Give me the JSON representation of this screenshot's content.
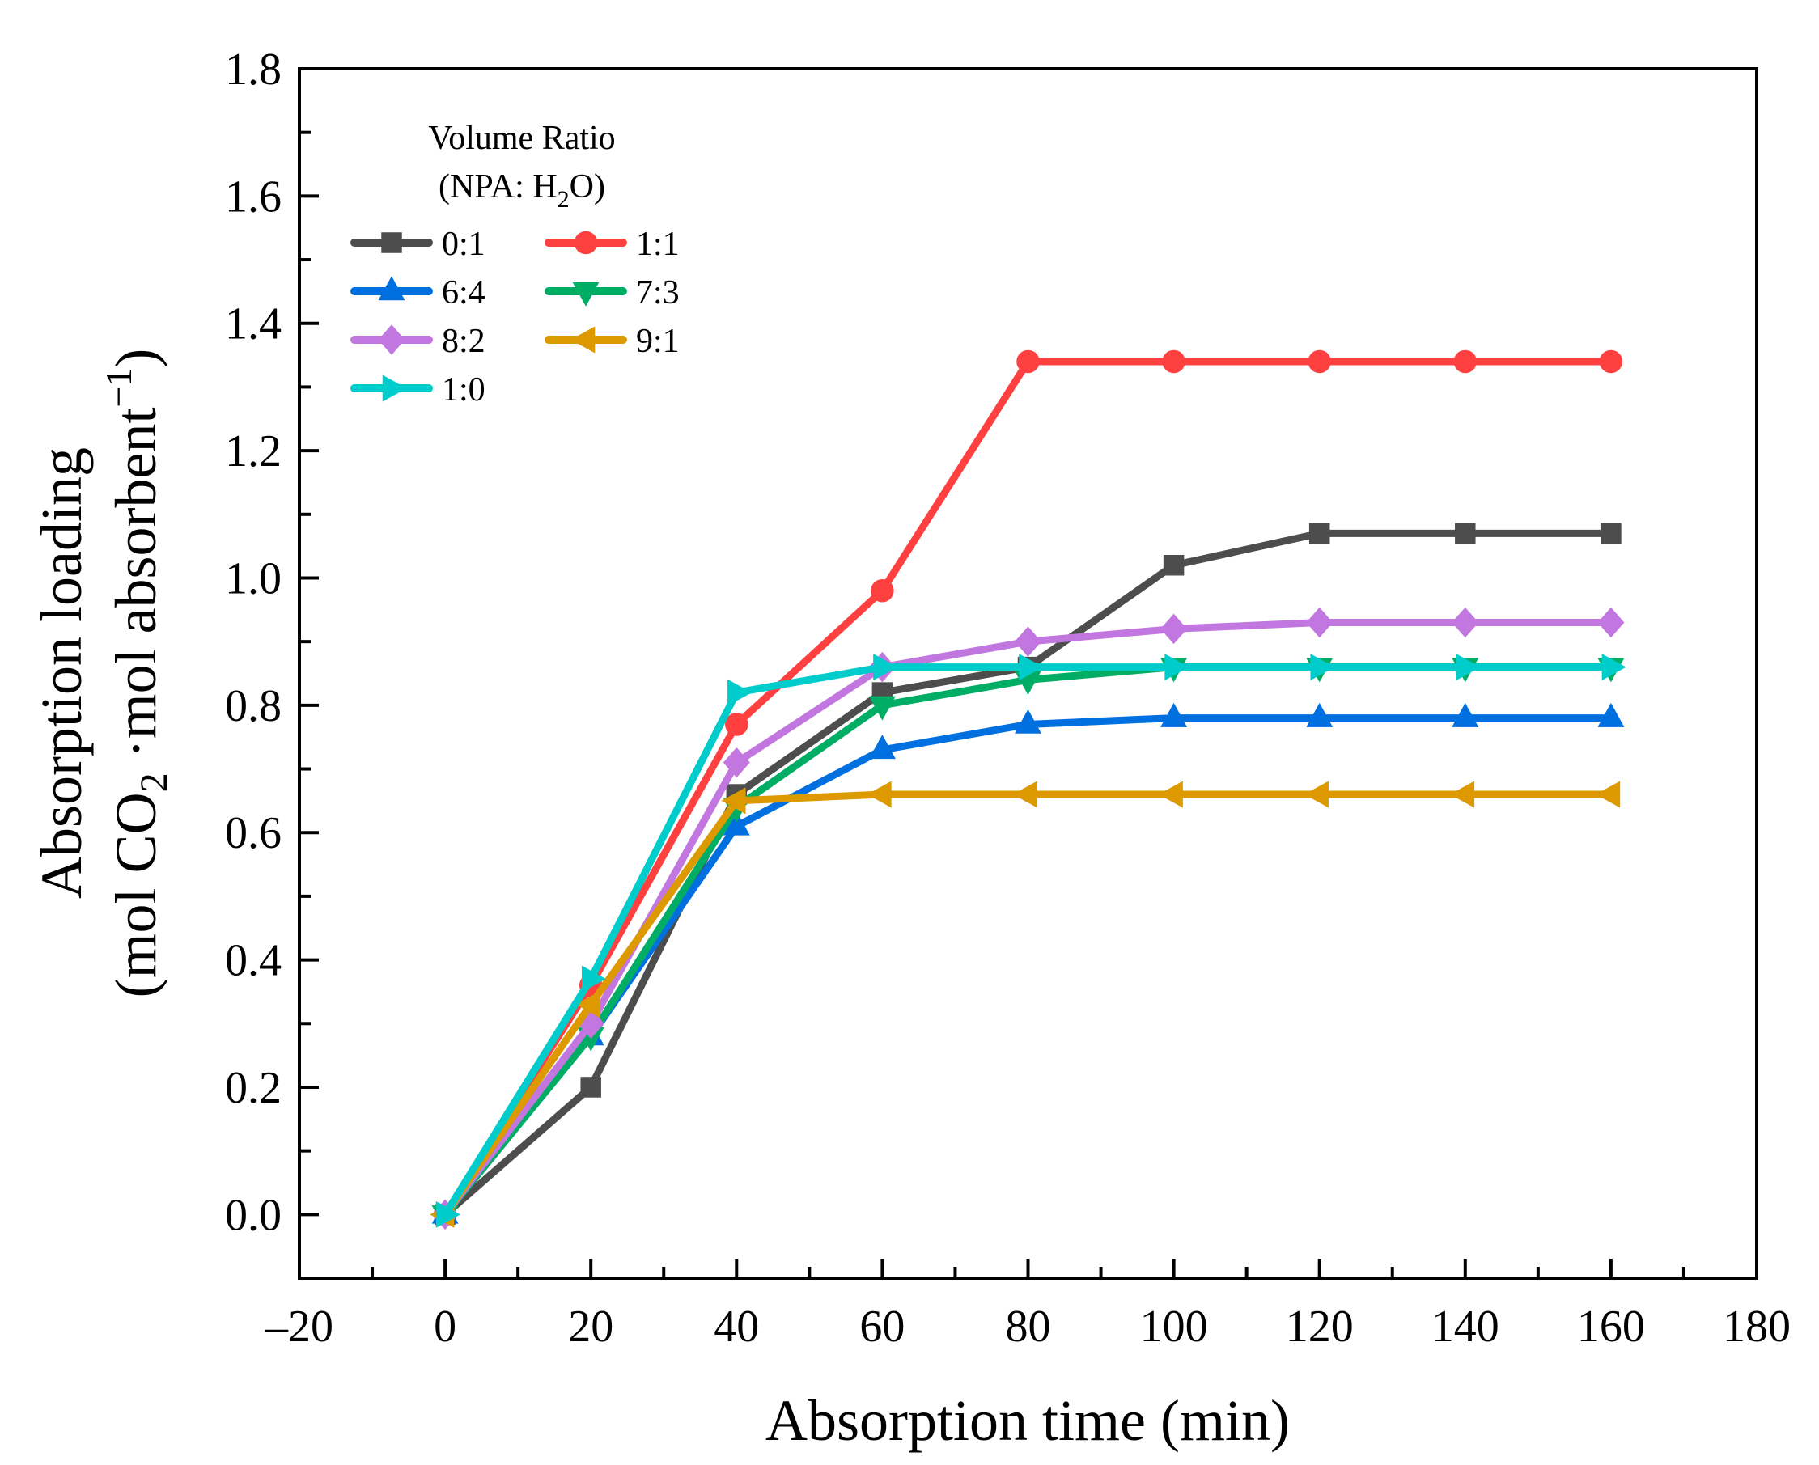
{
  "chart_data": {
    "type": "line",
    "title": "",
    "xlabel": "Absorption time (min)",
    "ylabel": {
      "line1": "Absorption loading",
      "line2_parts": [
        "(mol CO",
        "2",
        " ·mol absorbent",
        "−1",
        ")"
      ]
    },
    "xlim": [
      -20,
      180
    ],
    "ylim": [
      -0.1,
      1.8
    ],
    "xticks": [
      -20,
      0,
      20,
      40,
      60,
      80,
      100,
      120,
      140,
      160,
      180
    ],
    "xtick_labels": [
      "–20",
      "0",
      "20",
      "40",
      "60",
      "80",
      "100",
      "120",
      "140",
      "160",
      "180"
    ],
    "yticks": [
      0.0,
      0.2,
      0.4,
      0.6,
      0.8,
      1.0,
      1.2,
      1.4,
      1.6,
      1.8
    ],
    "ytick_labels": [
      "0.0",
      "0.2",
      "0.4",
      "0.6",
      "0.8",
      "1.0",
      "1.2",
      "1.4",
      "1.6",
      "1.8"
    ],
    "grid": false,
    "legend": {
      "title_line1": "Volume Ratio",
      "title_line2_parts": [
        "(NPA: H",
        "2",
        "O)"
      ],
      "placement": "top-left"
    },
    "x": [
      0,
      20,
      40,
      60,
      80,
      100,
      120,
      140,
      160
    ],
    "series": [
      {
        "name": "0:1",
        "color": "#4d4d4d",
        "marker": "square",
        "values": [
          0,
          0.2,
          0.66,
          0.82,
          0.86,
          1.02,
          1.07,
          1.07,
          1.07
        ]
      },
      {
        "name": "1:1",
        "color": "#ff4040",
        "marker": "circle",
        "values": [
          0,
          0.36,
          0.77,
          0.98,
          1.34,
          1.34,
          1.34,
          1.34,
          1.34
        ]
      },
      {
        "name": "6:4",
        "color": "#0070e0",
        "marker": "triangle-up",
        "values": [
          0,
          0.28,
          0.61,
          0.73,
          0.77,
          0.78,
          0.78,
          0.78,
          0.78
        ]
      },
      {
        "name": "7:3",
        "color": "#00ad65",
        "marker": "triangle-down",
        "values": [
          0,
          0.28,
          0.64,
          0.8,
          0.84,
          0.86,
          0.86,
          0.86,
          0.86
        ]
      },
      {
        "name": "8:2",
        "color": "#c277e0",
        "marker": "diamond",
        "values": [
          0,
          0.3,
          0.71,
          0.86,
          0.9,
          0.92,
          0.93,
          0.93,
          0.93
        ]
      },
      {
        "name": "9:1",
        "color": "#dc9900",
        "marker": "triangle-left",
        "values": [
          0,
          0.33,
          0.65,
          0.66,
          0.66,
          0.66,
          0.66,
          0.66,
          0.66
        ]
      },
      {
        "name": "1:0",
        "color": "#00cccc",
        "marker": "triangle-right",
        "values": [
          0,
          0.37,
          0.82,
          0.86,
          0.86,
          0.86,
          0.86,
          0.86,
          0.86
        ]
      }
    ]
  }
}
